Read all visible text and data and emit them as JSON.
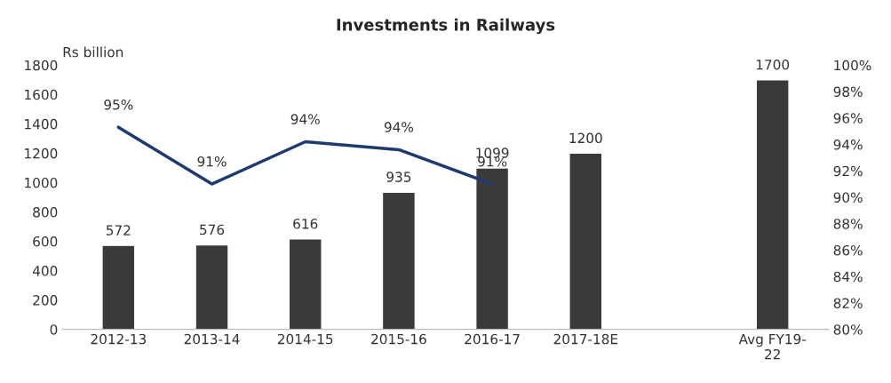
{
  "chart_data": {
    "type": "bar",
    "title": "Investments in Railways",
    "ylabel": "Rs billion",
    "categories": [
      "2012-13",
      "2013-14",
      "2014-15",
      "2015-16",
      "2016-17",
      "2017-18E",
      null,
      "Avg FY19-\n22"
    ],
    "series": [
      {
        "color": "#3a3a3a",
        "values": [
          572,
          576,
          616,
          935,
          1099,
          1200,
          null,
          1700
        ],
        "data_labels": true
      },
      {
        "type": "line",
        "axis": "y2",
        "color": "#1f3a6e",
        "values": [
          95.3,
          91.0,
          94.2,
          93.6,
          91.0,
          null,
          null,
          null
        ],
        "value_labels": [
          "95%",
          "91%",
          "94%",
          "94%",
          "91%",
          null,
          null,
          null
        ],
        "marker": "none",
        "line_style": "solid"
      }
    ],
    "ylim": [
      0,
      1800
    ],
    "yticks": [
      0,
      200,
      400,
      600,
      800,
      1000,
      1200,
      1400,
      1600,
      1800
    ],
    "y2lim": [
      80,
      100
    ],
    "y2ticks": [
      {
        "value": 80,
        "label": "80%"
      },
      {
        "value": 82,
        "label": "82%"
      },
      {
        "value": 84,
        "label": "84%"
      },
      {
        "value": 86,
        "label": "86%"
      },
      {
        "value": 88,
        "label": "88%"
      },
      {
        "value": 90,
        "label": "90%"
      },
      {
        "value": 92,
        "label": "92%"
      },
      {
        "value": 94,
        "label": "94%"
      },
      {
        "value": 96,
        "label": "96%"
      },
      {
        "value": 98,
        "label": "98%"
      },
      {
        "value": 100,
        "label": "100%"
      }
    ],
    "grid": false,
    "legend": false
  }
}
